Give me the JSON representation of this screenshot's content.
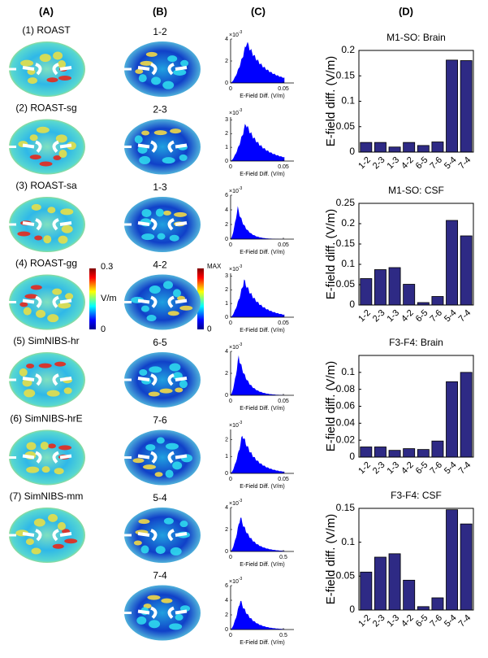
{
  "panel_labels": [
    "(A)",
    "(B)",
    "(C)",
    "(D)"
  ],
  "column_a_labels": [
    "(1) ROAST",
    "(2) ROAST-sg",
    "(3) ROAST-sa",
    "(4) ROAST-gg",
    "(5) SimNIBS-hr",
    "(6) SimNIBS-hrE",
    "(7) SimNIBS-mm"
  ],
  "column_b_labels": [
    "1-2",
    "2-3",
    "1-3",
    "4-2",
    "6-5",
    "7-6",
    "5-4",
    "7-4"
  ],
  "colorbar_a": {
    "max": 0.3,
    "unit": "V/m",
    "min": 0
  },
  "colorbar_b": {
    "max": "MAX",
    "min": 0
  },
  "histograms": [
    {
      "multiplier": "×10",
      "exponent": "-3",
      "xlabel": "E-Field Diff. (V/m)",
      "ylim": [
        0,
        4
      ],
      "yticks": [
        0,
        2,
        4
      ],
      "xlim": [
        0,
        0.06
      ],
      "xticks": [
        0,
        0.05
      ]
    },
    {
      "multiplier": "×10",
      "exponent": "-3",
      "xlabel": "E-Field Diff. (V/m)",
      "ylim": [
        0,
        3.2
      ],
      "yticks": [
        0,
        1,
        2,
        3
      ],
      "xlim": [
        0,
        0.06
      ],
      "xticks": [
        0,
        0.05
      ]
    },
    {
      "multiplier": "×10",
      "exponent": "-3",
      "xlabel": "E-Field Diff. (V/m)",
      "ylim": [
        0,
        6
      ],
      "yticks": [
        0,
        2,
        4,
        6
      ],
      "xlim": [
        0,
        0.06
      ],
      "xticks": [
        0,
        0.05
      ]
    },
    {
      "multiplier": "×10",
      "exponent": "-3",
      "xlabel": "E-Field Diff. (V/m)",
      "ylim": [
        0,
        3.2
      ],
      "yticks": [
        0,
        1,
        2,
        3
      ],
      "xlim": [
        0,
        0.06
      ],
      "xticks": [
        0,
        0.05
      ]
    },
    {
      "multiplier": "×10",
      "exponent": "-3",
      "xlabel": "E-Field Diff. (V/m)",
      "ylim": [
        0,
        4
      ],
      "yticks": [
        0,
        2,
        4
      ],
      "xlim": [
        0,
        0.06
      ],
      "xticks": [
        0,
        0.05
      ]
    },
    {
      "multiplier": "×10",
      "exponent": "-3",
      "xlabel": "E-Field Diff. (V/m)",
      "ylim": [
        0,
        2.6
      ],
      "yticks": [
        0,
        1,
        2
      ],
      "xlim": [
        0,
        0.06
      ],
      "xticks": [
        0,
        0.05
      ]
    },
    {
      "multiplier": "×10",
      "exponent": "-3",
      "xlabel": "E-Field Diff. (V/m)",
      "ylim": [
        0,
        4
      ],
      "yticks": [
        0,
        2,
        4
      ],
      "xlim": [
        0,
        0.6
      ],
      "xticks": [
        0,
        0.5
      ]
    },
    {
      "multiplier": "×10",
      "exponent": "-3",
      "xlabel": "E-Field Diff. (V/m)",
      "ylim": [
        0,
        6
      ],
      "yticks": [
        0,
        2,
        4,
        6
      ],
      "xlim": [
        0,
        0.6
      ],
      "xticks": [
        0,
        0.5
      ]
    }
  ],
  "chart_data": [
    {
      "type": "bar",
      "title": "M1-SO: Brain",
      "ylabel": "E-field diff. (V/m)",
      "color": "#2e2a85",
      "categories": [
        "1-2",
        "2-3",
        "1-3",
        "4-2",
        "6-5",
        "7-6",
        "5-4",
        "7-4"
      ],
      "values": [
        0.019,
        0.019,
        0.01,
        0.019,
        0.013,
        0.02,
        0.181,
        0.18
      ],
      "ylim": [
        0,
        0.2
      ],
      "yticks": [
        0,
        0.05,
        0.1,
        0.15,
        0.2
      ]
    },
    {
      "type": "bar",
      "title": "M1-SO: CSF",
      "ylabel": "E-field diff. (V/m)",
      "color": "#2e2a85",
      "categories": [
        "1-2",
        "2-3",
        "1-3",
        "4-2",
        "6-5",
        "7-6",
        "5-4",
        "7-4"
      ],
      "values": [
        0.065,
        0.087,
        0.092,
        0.051,
        0.006,
        0.021,
        0.208,
        0.17
      ],
      "ylim": [
        0,
        0.25
      ],
      "yticks": [
        0,
        0.05,
        0.1,
        0.15,
        0.2,
        0.25
      ]
    },
    {
      "type": "bar",
      "title": "F3-F4: Brain",
      "ylabel": "E-field diff. (V/m)",
      "color": "#2e2a85",
      "categories": [
        "1-2",
        "2-3",
        "1-3",
        "4-2",
        "6-5",
        "7-6",
        "5-4",
        "7-4"
      ],
      "values": [
        0.012,
        0.012,
        0.008,
        0.01,
        0.009,
        0.019,
        0.089,
        0.1
      ],
      "ylim": [
        0,
        0.12
      ],
      "yticks": [
        0,
        0.02,
        0.04,
        0.06,
        0.08,
        0.1
      ]
    },
    {
      "type": "bar",
      "title": "F3-F4: CSF",
      "ylabel": "E-field diff. (V/m)",
      "color": "#2e2a85",
      "categories": [
        "1-2",
        "2-3",
        "1-3",
        "4-2",
        "6-5",
        "7-6",
        "5-4",
        "7-4"
      ],
      "values": [
        0.056,
        0.078,
        0.083,
        0.044,
        0.005,
        0.018,
        0.148,
        0.127
      ],
      "ylim": [
        0,
        0.15
      ],
      "yticks": [
        0,
        0.05,
        0.1,
        0.15
      ]
    }
  ]
}
